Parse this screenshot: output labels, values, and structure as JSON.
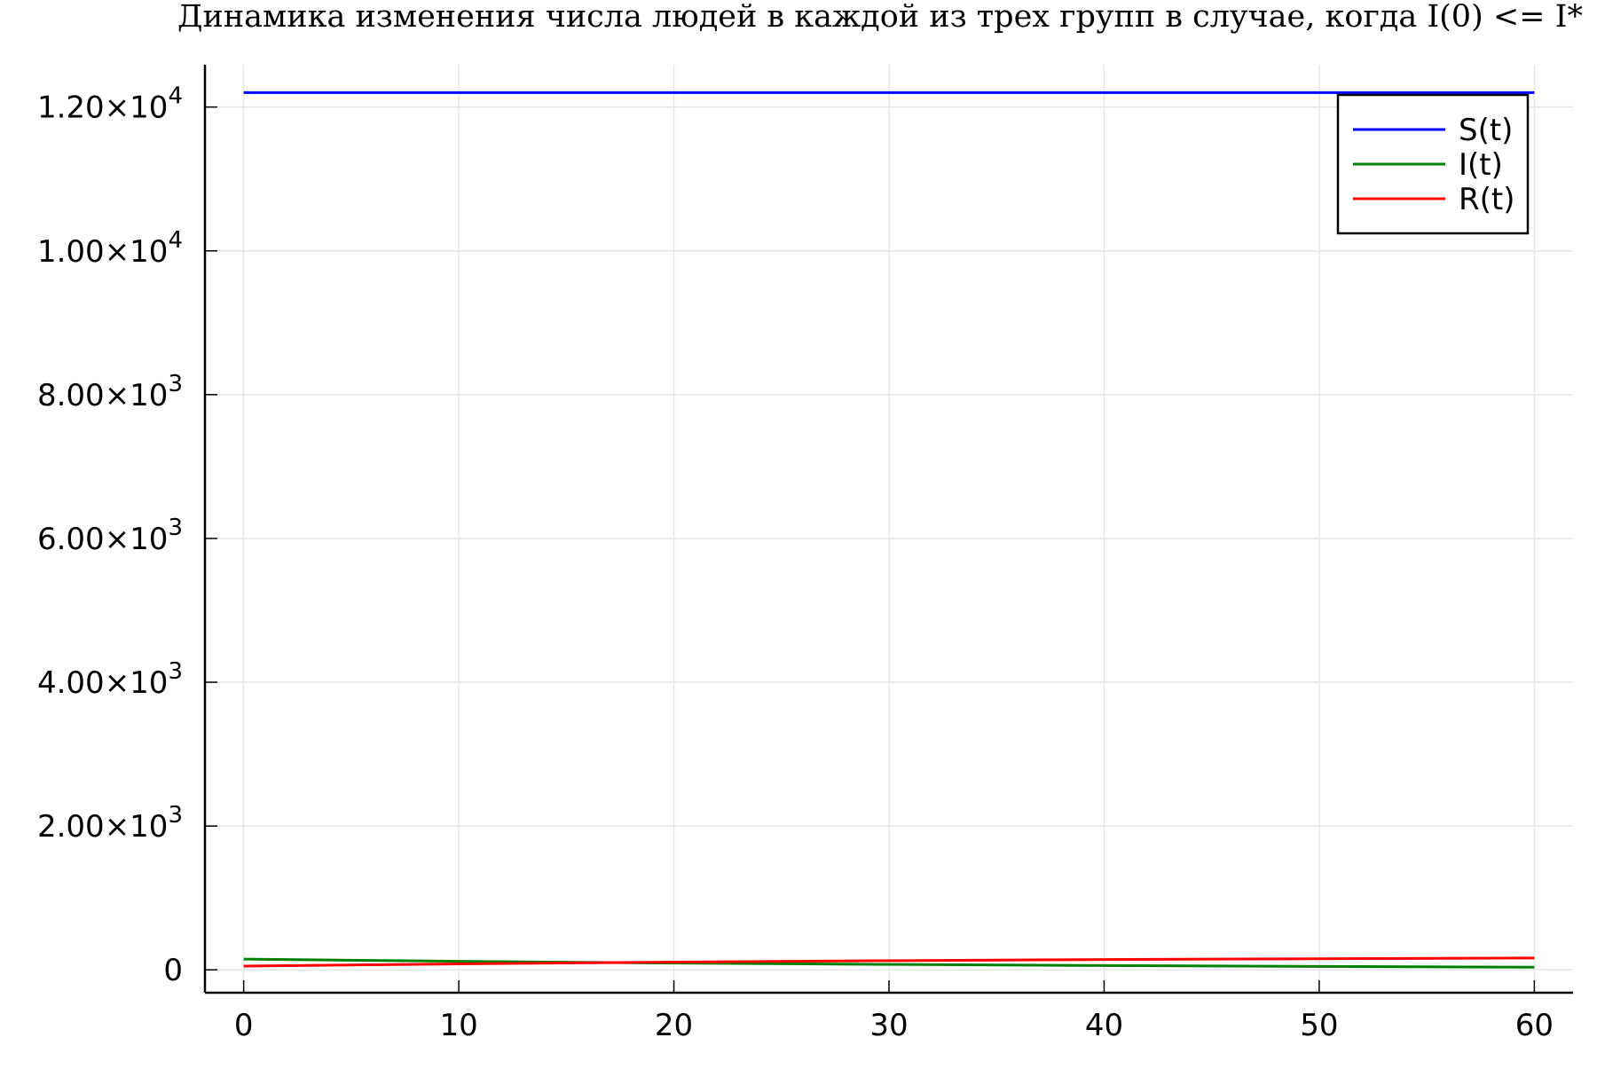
{
  "chart_data": {
    "type": "line",
    "title": "Динамика изменения числа людей в каждой из трех групп в случае, когда I(0) <= I*",
    "xlabel": "",
    "ylabel": "",
    "xlim": [
      -1.8,
      61.8
    ],
    "ylim": [
      -318,
      12588
    ],
    "grid": true,
    "legend_position": "top-right",
    "x_ticks": [
      {
        "value": 0,
        "label": "0"
      },
      {
        "value": 10,
        "label": "10"
      },
      {
        "value": 20,
        "label": "20"
      },
      {
        "value": 30,
        "label": "30"
      },
      {
        "value": 40,
        "label": "40"
      },
      {
        "value": 50,
        "label": "50"
      },
      {
        "value": 60,
        "label": "60"
      }
    ],
    "y_ticks": [
      {
        "value": 0,
        "mantissa": "0",
        "exponent": ""
      },
      {
        "value": 2000,
        "mantissa": "2.00×10",
        "exponent": "3"
      },
      {
        "value": 4000,
        "mantissa": "4.00×10",
        "exponent": "3"
      },
      {
        "value": 6000,
        "mantissa": "6.00×10",
        "exponent": "3"
      },
      {
        "value": 8000,
        "mantissa": "8.00×10",
        "exponent": "3"
      },
      {
        "value": 10000,
        "mantissa": "1.00×10",
        "exponent": "4"
      },
      {
        "value": 12000,
        "mantissa": "1.20×10",
        "exponent": "4"
      }
    ],
    "x": [
      0,
      10,
      20,
      30,
      40,
      50,
      60
    ],
    "series": [
      {
        "name": "S(t)",
        "color": "#0000ff",
        "values": [
          12200,
          12200,
          12200,
          12200,
          12200,
          12200,
          12200
        ]
      },
      {
        "name": "I(t)",
        "color": "#008000",
        "values": [
          150,
          119,
          94,
          75,
          59,
          47,
          37
        ]
      },
      {
        "name": "R(t)",
        "color": "#ff0000",
        "values": [
          52,
          83,
          108,
          127,
          143,
          155,
          165
        ]
      }
    ]
  }
}
